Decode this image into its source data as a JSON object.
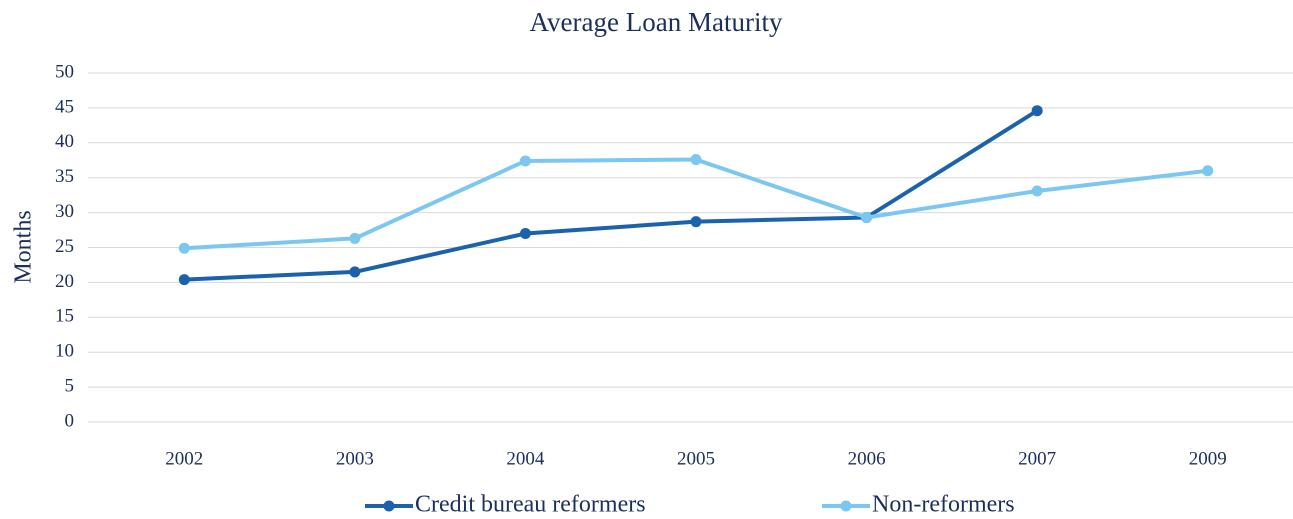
{
  "chart_data": {
    "type": "line",
    "title": "Average Loan Maturity",
    "y_label": "Months",
    "categories": [
      "2002",
      "2003",
      "2004",
      "2005",
      "2006",
      "2007",
      "2009"
    ],
    "series": [
      {
        "name": "Credit bureau reformers",
        "color": "#1a63ac",
        "values": [
          20.4,
          21.5,
          27,
          28.7,
          29.3,
          44.6,
          null
        ]
      },
      {
        "name": "Non-reformers",
        "color": "#7cc7f1",
        "values": [
          24.9,
          26.3,
          37.4,
          37.6,
          29.3,
          33.1,
          36
        ]
      }
    ],
    "ylim": [
      0,
      50
    ],
    "yticks": [
      0,
      5,
      10,
      15,
      20,
      25,
      30,
      35,
      40,
      45,
      50
    ],
    "grid": true,
    "legend": "bottom"
  }
}
